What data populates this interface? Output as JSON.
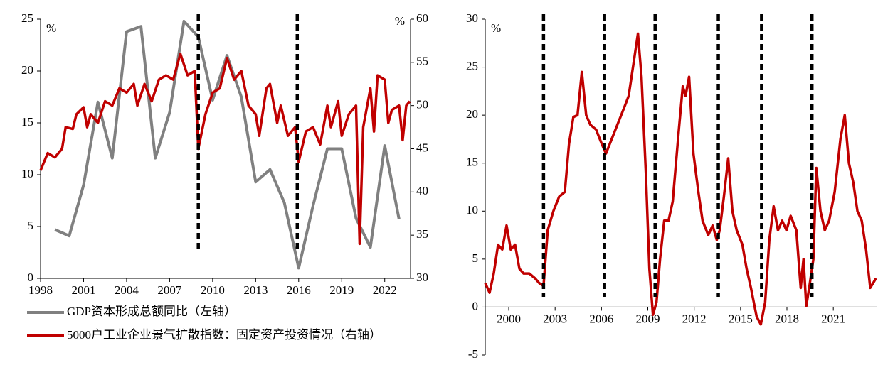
{
  "chart_data": [
    {
      "type": "line",
      "xlim": [
        1998,
        2023.8
      ],
      "xticks": [
        1998,
        2001,
        2004,
        2007,
        2010,
        2013,
        2016,
        2019,
        2022
      ],
      "ylim": [
        0,
        25
      ],
      "yticks": [
        0,
        5,
        10,
        15,
        20,
        25
      ],
      "y2lim": [
        30,
        60
      ],
      "y2ticks": [
        30,
        35,
        40,
        45,
        50,
        55,
        60
      ],
      "y_label": "%",
      "y2_label": "%",
      "event_lines": [
        2009.0,
        2015.9
      ],
      "legend": "bottom",
      "series": [
        {
          "name": "GDP资本形成总额同比（左轴）",
          "color": "#808080",
          "axis": "y",
          "x": [
            1999,
            2000,
            2001,
            2002,
            2003,
            2004,
            2005,
            2006,
            2007,
            2008,
            2009,
            2010,
            2011,
            2012,
            2013,
            2014,
            2015,
            2016,
            2017,
            2018,
            2019,
            2020,
            2021,
            2022,
            2023
          ],
          "values": [
            4.7,
            4.1,
            9.0,
            17.0,
            11.6,
            23.8,
            24.3,
            11.6,
            16.0,
            24.8,
            23.3,
            17.2,
            21.5,
            17.5,
            9.3,
            10.5,
            7.3,
            1.0,
            7.0,
            12.5,
            12.5,
            5.8,
            3.0,
            12.8,
            5.7
          ]
        },
        {
          "name": "5000户工业企业景气扩散指数：固定资产投资情况（右轴）",
          "color": "#c00000",
          "axis": "y2",
          "x": [
            1998,
            1998.5,
            1999,
            1999.5,
            1999.75,
            2000.25,
            2000.5,
            2001,
            2001.25,
            2001.5,
            2002,
            2002.5,
            2003,
            2003.5,
            2004,
            2004.5,
            2004.75,
            2005.25,
            2005.75,
            2006.25,
            2006.75,
            2007.25,
            2007.75,
            2008.25,
            2008.75,
            2009,
            2009.5,
            2010,
            2010.5,
            2011,
            2011.5,
            2012,
            2012.5,
            2013,
            2013.25,
            2013.75,
            2014,
            2014.5,
            2014.75,
            2015.25,
            2015.75,
            2016,
            2016.5,
            2017,
            2017.5,
            2018,
            2018.25,
            2018.75,
            2019,
            2019.5,
            2020,
            2020.25,
            2020.5,
            2021,
            2021.25,
            2021.5,
            2022,
            2022.25,
            2022.5,
            2023,
            2023.25,
            2023.5,
            2023.75
          ],
          "values": [
            42.5,
            44.5,
            44,
            45,
            47.5,
            47.3,
            49,
            49.8,
            47.5,
            49,
            48,
            50.5,
            50,
            52,
            51.5,
            52.5,
            50,
            52.5,
            50.5,
            53,
            53.5,
            53,
            56,
            53.5,
            54,
            45,
            49,
            51.5,
            52,
            55.5,
            53,
            54,
            50,
            49,
            46.5,
            52,
            52.5,
            48,
            50,
            46.5,
            47.5,
            43.5,
            47,
            47.5,
            45.5,
            50,
            47.5,
            50.5,
            46.5,
            49,
            50,
            34,
            47.5,
            52,
            47,
            53.5,
            53,
            48,
            49.5,
            50,
            46,
            50,
            50.5
          ]
        }
      ]
    },
    {
      "type": "line",
      "xlim": [
        1998.48,
        2023.8
      ],
      "xticks": [
        2000,
        2003,
        2006,
        2009,
        2012,
        2015,
        2018,
        2021
      ],
      "ylim": [
        -5,
        30
      ],
      "yticks": [
        -5,
        0,
        5,
        10,
        15,
        20,
        25,
        30
      ],
      "y_label": "%",
      "event_lines": [
        2002.25,
        2006.2,
        2009.47,
        2013.56,
        2016.36,
        2019.62
      ],
      "series": [
        {
          "color": "#c00000",
          "axis": "y",
          "x": [
            1998.48,
            1998.76,
            1999.03,
            1999.31,
            1999.58,
            1999.86,
            2000.13,
            2000.41,
            2000.69,
            2000.96,
            2001.33,
            2001.7,
            2001.97,
            2002.25,
            2002.52,
            2002.89,
            2003.26,
            2003.63,
            2003.9,
            2004.18,
            2004.45,
            2004.73,
            2005.01,
            2005.28,
            2005.65,
            2006.02,
            2006.29,
            2006.66,
            2007.03,
            2007.4,
            2007.76,
            2008.13,
            2008.36,
            2008.59,
            2008.87,
            2009.1,
            2009.33,
            2009.56,
            2009.79,
            2010.06,
            2010.34,
            2010.61,
            2010.98,
            2011.26,
            2011.44,
            2011.67,
            2011.95,
            2012.27,
            2012.54,
            2012.91,
            2013.19,
            2013.46,
            2013.65,
            2013.92,
            2014.2,
            2014.47,
            2014.75,
            2015.12,
            2015.39,
            2015.67,
            2016.04,
            2016.31,
            2016.59,
            2016.86,
            2017.14,
            2017.42,
            2017.69,
            2017.97,
            2018.24,
            2018.61,
            2018.89,
            2019.07,
            2019.25,
            2019.44,
            2019.71,
            2019.9,
            2020.17,
            2020.45,
            2020.73,
            2021.09,
            2021.46,
            2021.74,
            2022.01,
            2022.29,
            2022.56,
            2022.84,
            2023.12,
            2023.39,
            2023.58,
            2023.76
          ],
          "values": [
            2.5,
            1.5,
            3.5,
            6.5,
            6,
            8.5,
            6,
            6.5,
            4,
            3.5,
            3.5,
            3,
            2.5,
            2.2,
            8,
            10,
            11.5,
            12,
            17,
            19.8,
            20,
            24.5,
            20,
            19,
            18.5,
            17,
            16,
            17.5,
            19,
            20.5,
            22,
            26,
            28.5,
            24,
            14,
            4,
            -0.8,
            0.5,
            5,
            9,
            9,
            11,
            18,
            23,
            22,
            24,
            16,
            12,
            9,
            7.5,
            8.5,
            7,
            8,
            11.5,
            15.5,
            10,
            8,
            6.5,
            4,
            2,
            -1,
            -1.8,
            0.5,
            7,
            10.5,
            8,
            9,
            8,
            9.5,
            8,
            2,
            5,
            0.1,
            2,
            5,
            14.5,
            10,
            8,
            9,
            12,
            17.5,
            20,
            15,
            13,
            10,
            9,
            6,
            2,
            2.5,
            3
          ]
        }
      ]
    }
  ]
}
